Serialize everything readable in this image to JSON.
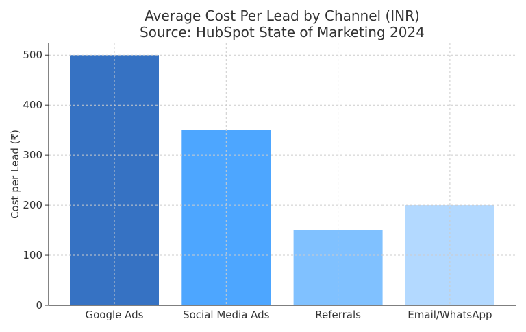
{
  "chart_data": {
    "type": "bar",
    "title": "Average Cost Per Lead by Channel (INR)",
    "subtitle": "Source: HubSpot State of Marketing 2024",
    "xlabel": "",
    "ylabel": "Cost per Lead (₹)",
    "categories": [
      "Google Ads",
      "Social Media Ads",
      "Referrals",
      "Email/WhatsApp"
    ],
    "values": [
      500,
      350,
      150,
      200
    ],
    "colors": [
      "#3672c3",
      "#4da6ff",
      "#80c1ff",
      "#b3d9ff"
    ],
    "ylim": [
      0,
      525
    ],
    "yticks": [
      0,
      100,
      200,
      300,
      400,
      500
    ],
    "grid": true
  }
}
